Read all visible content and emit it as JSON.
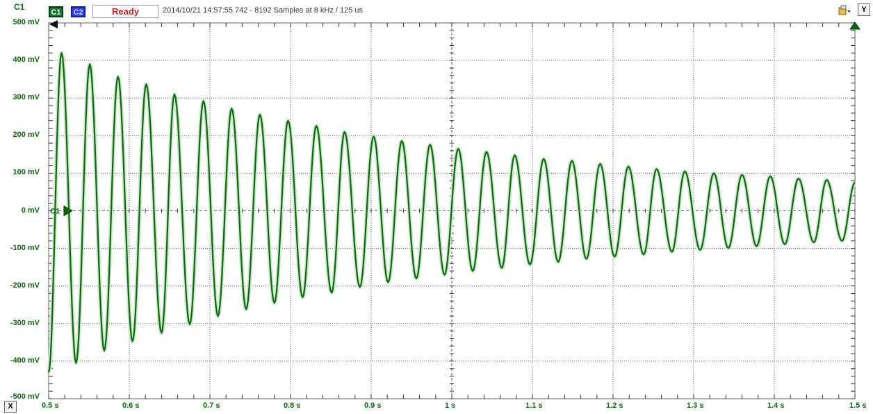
{
  "channel": {
    "label": "C1"
  },
  "toolbar": {
    "c1": "C1",
    "c2": "C2",
    "status": "Ready",
    "info": "2014/10/21 14:57:55.742 - 8192 Samples at 8 kHz / 125 us",
    "y_button": "Y",
    "x_button": "X",
    "settings_icon": "settings-dropdown-icon"
  },
  "colors": {
    "trace": "#0a6a0a",
    "envelope": "#cfe8cf",
    "grid": "#555555",
    "status": "#d02020"
  },
  "markers": {
    "zero_tag": "C1"
  },
  "chart_data": {
    "type": "line",
    "title": "",
    "xlabel": "",
    "ylabel": "",
    "x_ticks": [
      "0.5 s",
      "0.6 s",
      "0.7 s",
      "0.8 s",
      "0.9 s",
      "1 s",
      "1.1 s",
      "1.2 s",
      "1.3 s",
      "1.4 s",
      "1.5 s"
    ],
    "y_ticks": [
      "500 mV",
      "400 mV",
      "300 mV",
      "200 mV",
      "100 mV",
      "0 mV",
      "-100 mV",
      "-200 mV",
      "-300 mV",
      "-400 mV",
      "-500 mV"
    ],
    "xlim": [
      0.5,
      1.5
    ],
    "ylim": [
      -500,
      500
    ],
    "grid": true,
    "series": [
      {
        "values_desc": "",
        "frequency_hz": 29.2,
        "peaks": [
          [
            0.516,
            420
          ],
          [
            0.551,
            390
          ],
          [
            0.586,
            357
          ],
          [
            0.621,
            337
          ],
          [
            0.656,
            310
          ],
          [
            0.692,
            292
          ],
          [
            0.727,
            272
          ],
          [
            0.762,
            256
          ],
          [
            0.797,
            240
          ],
          [
            0.832,
            226
          ],
          [
            0.867,
            210
          ],
          [
            0.903,
            198
          ],
          [
            0.938,
            186
          ],
          [
            0.973,
            176
          ],
          [
            1.008,
            165
          ],
          [
            1.043,
            157
          ],
          [
            1.078,
            148
          ],
          [
            1.114,
            138
          ],
          [
            1.149,
            133
          ],
          [
            1.184,
            125
          ],
          [
            1.219,
            118
          ],
          [
            1.254,
            111
          ],
          [
            1.289,
            105
          ],
          [
            1.325,
            100
          ],
          [
            1.36,
            96
          ],
          [
            1.395,
            92
          ],
          [
            1.43,
            86
          ],
          [
            1.465,
            82
          ],
          [
            1.5,
            75
          ]
        ],
        "troughs": [
          [
            0.5,
            -430
          ],
          [
            0.534,
            -405
          ],
          [
            0.569,
            -372
          ],
          [
            0.604,
            -347
          ],
          [
            0.64,
            -325
          ],
          [
            0.675,
            -302
          ],
          [
            0.71,
            -280
          ],
          [
            0.745,
            -262
          ],
          [
            0.78,
            -245
          ],
          [
            0.815,
            -230
          ],
          [
            0.851,
            -218
          ],
          [
            0.886,
            -203
          ],
          [
            0.921,
            -190
          ],
          [
            0.956,
            -180
          ],
          [
            0.991,
            -170
          ],
          [
            1.026,
            -160
          ],
          [
            1.062,
            -152
          ],
          [
            1.097,
            -143
          ],
          [
            1.132,
            -136
          ],
          [
            1.167,
            -128
          ],
          [
            1.202,
            -122
          ],
          [
            1.238,
            -116
          ],
          [
            1.273,
            -109
          ],
          [
            1.308,
            -104
          ],
          [
            1.343,
            -99
          ],
          [
            1.378,
            -94
          ],
          [
            1.413,
            -89
          ],
          [
            1.449,
            -84
          ],
          [
            1.484,
            -80
          ]
        ]
      }
    ]
  }
}
